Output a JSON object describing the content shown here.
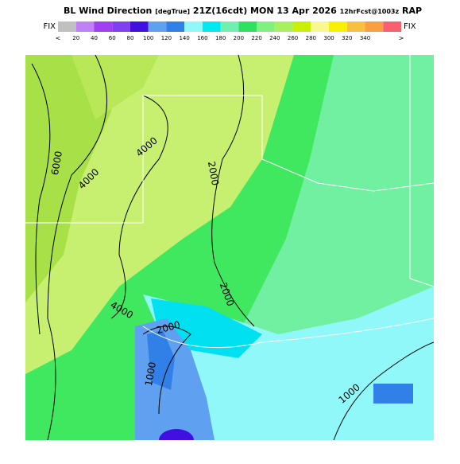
{
  "header": {
    "title": "BL Wind Direction",
    "units": "[degTrue]",
    "valid": "21Z(16cdt) MON 13 Apr 2026",
    "forecast": "12hrFcst@1003z",
    "model": "RAP"
  },
  "legend": {
    "left_label": "FIX",
    "right_label": "FIX",
    "lower_end": "<",
    "upper_end": ">",
    "ticks": [
      "20",
      "40",
      "60",
      "80",
      "100",
      "120",
      "140",
      "160",
      "180",
      "200",
      "220",
      "240",
      "260",
      "280",
      "300",
      "320",
      "340"
    ],
    "colors": [
      "#c0c0c0",
      "#c080f8",
      "#a040f0",
      "#8040f0",
      "#4010e0",
      "#60a0f0",
      "#3080e8",
      "#90f8f8",
      "#00e8f0",
      "#70f0b0",
      "#30e060",
      "#80f080",
      "#a8f060",
      "#c8f000",
      "#f8f890",
      "#f8f000",
      "#f8c040",
      "#f8a040",
      "#f86070"
    ]
  },
  "map": {
    "contour_labels": [
      "6000",
      "4000",
      "4000",
      "4000",
      "2000",
      "2000",
      "2000",
      "1000",
      "1000"
    ]
  }
}
